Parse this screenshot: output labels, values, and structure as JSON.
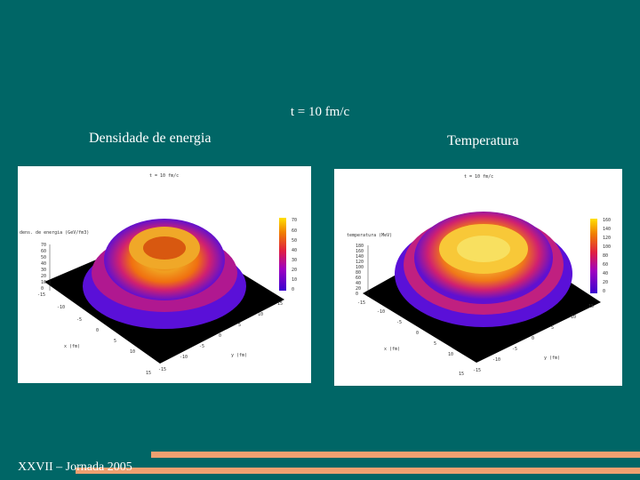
{
  "slide": {
    "title": "t = 10 fm/c",
    "footer": "XXVII – Jornada 2005"
  },
  "panels": [
    {
      "caption": "Densidade de energia",
      "plot_title": "t = 10 fm/c",
      "zlabel": "dens. de energia (GeV/fm3)",
      "xlabel": "x (fm)",
      "ylabel": "y (fm)",
      "colorbar_ticks": [
        "70",
        "60",
        "50",
        "40",
        "30",
        "20",
        "10",
        "0"
      ],
      "z_ticks": [
        "70",
        "60",
        "50",
        "40",
        "30",
        "20",
        "10",
        "0"
      ],
      "x_ticks": [
        "-15",
        "-10",
        "-5",
        "0",
        "5",
        "10",
        "15"
      ],
      "y_ticks": [
        "-15",
        "-10",
        "-5",
        "0",
        "5",
        "10",
        "15"
      ]
    },
    {
      "caption": "Temperatura",
      "plot_title": "t = 10 fm/c",
      "zlabel": "temperatura (MeV)",
      "xlabel": "x (fm)",
      "ylabel": "y (fm)",
      "colorbar_ticks": [
        "160",
        "140",
        "120",
        "100",
        "80",
        "60",
        "40",
        "20",
        "0"
      ],
      "z_ticks": [
        "180",
        "160",
        "140",
        "120",
        "100",
        "80",
        "60",
        "40",
        "20",
        "0"
      ],
      "x_ticks": [
        "-15",
        "-10",
        "-5",
        "0",
        "5",
        "10",
        "15"
      ],
      "y_ticks": [
        "-15",
        "-10",
        "-5",
        "0",
        "5",
        "10",
        "15"
      ]
    }
  ],
  "colors": {
    "background": "#006666",
    "accent_bar": "#f0a070",
    "text": "#ffffff"
  }
}
